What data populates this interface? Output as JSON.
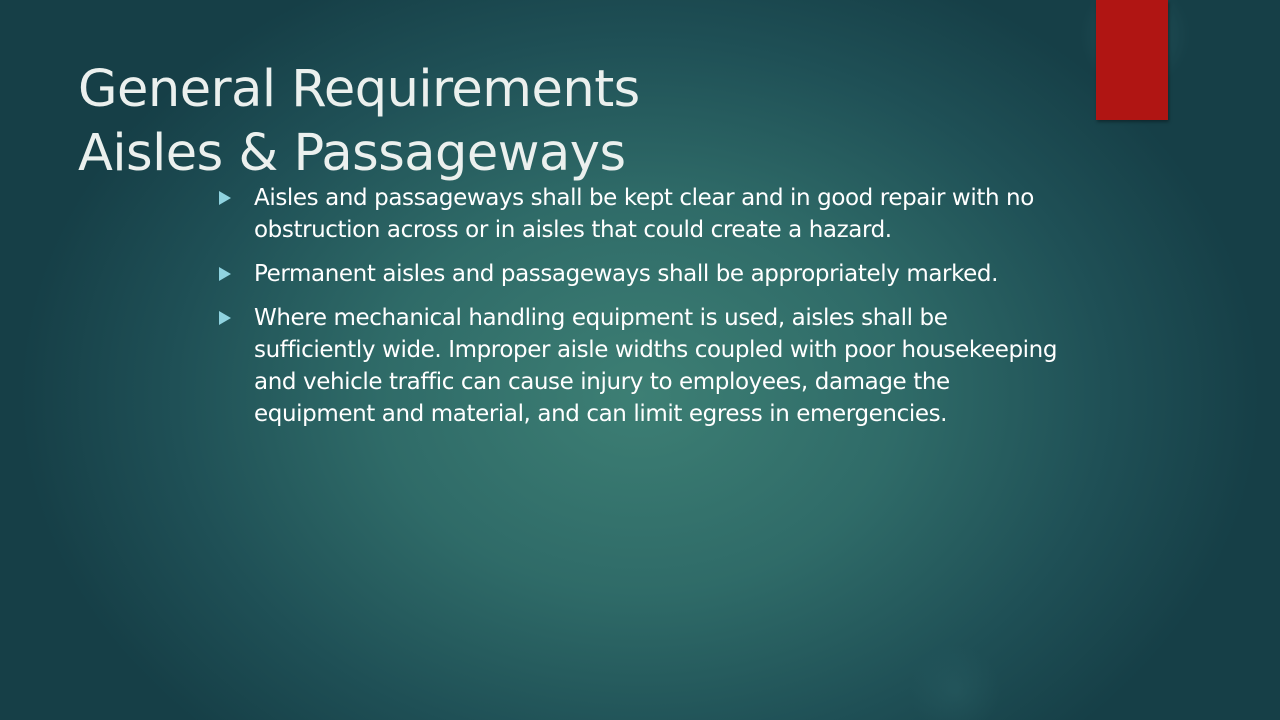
{
  "slide": {
    "title_lines": [
      "General Requirements",
      "Aisles & Passageways"
    ],
    "bullets": [
      "Aisles and passageways shall be kept clear and in good repair with no obstruction across or in aisles that could create a hazard.",
      "Permanent aisles and passageways shall be appropriately marked.",
      "Where mechanical handling equipment is used, aisles shall be sufficiently wide. Improper aisle widths coupled with poor housekeeping and vehicle traffic can cause injury to employees, damage the equipment and material, and can limit egress in emergencies."
    ],
    "bullet_icon": "play-triangle-icon",
    "colors": {
      "accent": "#b01513",
      "bullet_marker": "#8fd3e0",
      "text": "#ffffff",
      "background": "#2f6b68"
    }
  }
}
